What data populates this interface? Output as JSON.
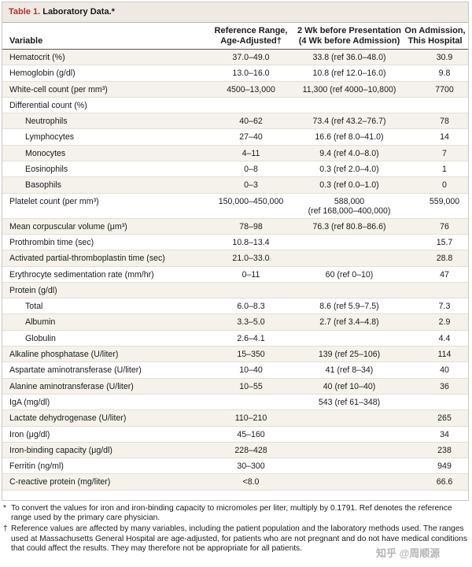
{
  "table": {
    "label": "Table 1.",
    "title": "Laboratory Data.*",
    "headers": {
      "variable": "Variable",
      "reference_line1": "Reference Range,",
      "reference_line2": "Age-Adjusted†",
      "before_line1": "2 Wk before Presentation",
      "before_line2": "(4 Wk before Admission)",
      "admission_line1": "On Admission,",
      "admission_line2": "This Hospital"
    },
    "rows": [
      {
        "variable": "Hematocrit (%)",
        "reference": "37.0–49.0",
        "before": "33.8 (ref 36.0–48.0)",
        "admission": "30.9"
      },
      {
        "variable": "Hemoglobin (g/dl)",
        "reference": "13.0–16.0",
        "before": "10.8 (ref 12.0–16.0)",
        "admission": "9.8"
      },
      {
        "variable": "White-cell count (per mm³)",
        "reference": "4500–13,000",
        "before": "11,300 (ref 4000–10,800)",
        "admission": "7700"
      },
      {
        "variable": "Differential count (%)",
        "reference": "",
        "before": "",
        "admission": ""
      },
      {
        "variable": "Neutrophils",
        "reference": "40–62",
        "before": "73.4 (ref 43.2–76.7)",
        "admission": "78"
      },
      {
        "variable": "Lymphocytes",
        "reference": "27–40",
        "before": "16.6 (ref 8.0–41.0)",
        "admission": "14"
      },
      {
        "variable": "Monocytes",
        "reference": "4–11",
        "before": "9.4 (ref 4.0–8.0)",
        "admission": "7"
      },
      {
        "variable": "Eosinophils",
        "reference": "0–8",
        "before": "0.3 (ref 2.0–4.0)",
        "admission": "1"
      },
      {
        "variable": "Basophils",
        "reference": "0–3",
        "before": "0.3 (ref 0.0–1.0)",
        "admission": "0"
      },
      {
        "variable": "Platelet count (per mm³)",
        "reference": "150,000–450,000",
        "before": "588,000",
        "before_line2": "(ref 168,000–400,000)",
        "admission": "559,000"
      },
      {
        "variable": "Mean corpuscular volume (μm³)",
        "reference": "78–98",
        "before": "76.3 (ref 80.8–86.6)",
        "admission": "76"
      },
      {
        "variable": "Prothrombin time (sec)",
        "reference": "10.8–13.4",
        "before": "",
        "admission": "15.7"
      },
      {
        "variable": "Activated partial-thromboplastin time (sec)",
        "reference": "21.0–33.0",
        "before": "",
        "admission": "28.8"
      },
      {
        "variable": "Erythrocyte sedimentation rate (mm/hr)",
        "reference": "0–11",
        "before": "60 (ref 0–10)",
        "admission": "47"
      },
      {
        "variable": "Protein (g/dl)",
        "reference": "",
        "before": "",
        "admission": ""
      },
      {
        "variable": "Total",
        "reference": "6.0–8.3",
        "before": "8.6 (ref 5.9–7.5)",
        "admission": "7.3"
      },
      {
        "variable": "Albumin",
        "reference": "3.3–5.0",
        "before": "2.7 (ref 3.4–4.8)",
        "admission": "2.9"
      },
      {
        "variable": "Globulin",
        "reference": "2.6–4.1",
        "before": "",
        "admission": "4.4"
      },
      {
        "variable": "Alkaline phosphatase (U/liter)",
        "reference": "15–350",
        "before": "139 (ref 25–106)",
        "admission": "114"
      },
      {
        "variable": "Aspartate aminotransferase (U/liter)",
        "reference": "10–40",
        "before": "41 (ref 8–34)",
        "admission": "40"
      },
      {
        "variable": "Alanine aminotransferase (U/liter)",
        "reference": "10–55",
        "before": "40 (ref 10–40)",
        "admission": "36"
      },
      {
        "variable": "IgA (mg/dl)",
        "reference": "",
        "before": "543 (ref 61–348)",
        "admission": ""
      },
      {
        "variable": "Lactate dehydrogenase (U/liter)",
        "reference": "110–210",
        "before": "",
        "admission": "265"
      },
      {
        "variable": "Iron (μg/dl)",
        "reference": "45–160",
        "before": "",
        "admission": "34"
      },
      {
        "variable": "Iron-binding capacity (μg/dl)",
        "reference": "228–428",
        "before": "",
        "admission": "238"
      },
      {
        "variable": "Ferritin (ng/ml)",
        "reference": "30–300",
        "before": "",
        "admission": "949"
      },
      {
        "variable": "C-reactive protein (mg/liter)",
        "reference": "<8.0",
        "before": "",
        "admission": "66.6"
      }
    ]
  },
  "footnotes": {
    "star_mark": "*",
    "star_text": "To convert the values for iron and iron-binding capacity to micromoles per liter, multiply by 0.1791. Ref denotes the reference range used by the primary care physician.",
    "dagger_mark": "†",
    "dagger_text": "Reference values are affected by many variables, including the patient population and the laboratory methods used. The ranges used at Massachusetts General Hospital are age-adjusted, for patients who are not pregnant and do not have medical conditions that could affect the results. They may therefore not be appropriate for all patients."
  },
  "watermark": "知乎 @周顺源"
}
